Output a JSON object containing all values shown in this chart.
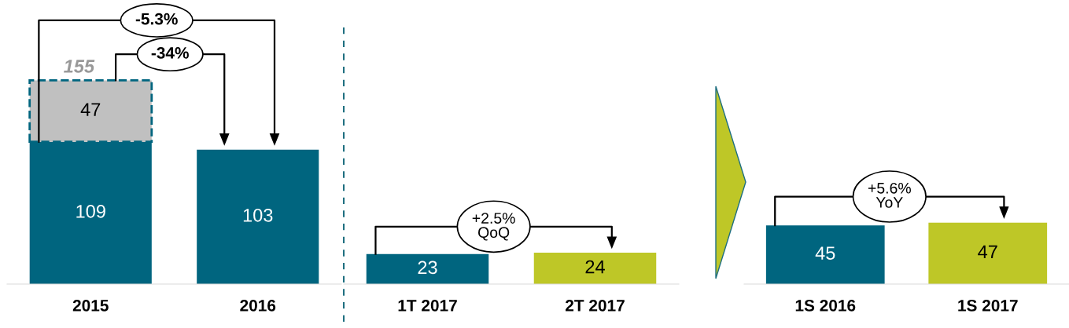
{
  "chart_data": [
    {
      "type": "bar",
      "stacked": true,
      "categories": [
        "2015",
        "2016"
      ],
      "tick_labels": "x",
      "data_labels": true,
      "totals": [
        "155",
        null
      ],
      "series": [
        {
          "colors": [
            "#00657f",
            "#00657f"
          ],
          "values": [
            109,
            103
          ]
        },
        {
          "color": "#c0c0c0",
          "values": [
            47,
            null
          ],
          "line_style": "dashed"
        }
      ],
      "annotations": [
        "-5.3%",
        "-34%"
      ]
    },
    {
      "type": "bar",
      "stacked": true,
      "categories": [
        "1T 2017",
        "2T 2017"
      ],
      "tick_labels": "x",
      "data_labels": true,
      "series": [
        {
          "colors": [
            "#00657f",
            "#bec727"
          ],
          "values": [
            23,
            24
          ]
        }
      ],
      "annotations": [
        "+2.5%\nQoQ"
      ]
    },
    {
      "type": "bar",
      "stacked": true,
      "categories": [
        "1S 2016",
        "1S 2017"
      ],
      "tick_labels": "x",
      "data_labels": true,
      "series": [
        {
          "colors": [
            "#00657f",
            "#bec727"
          ],
          "values": [
            45,
            47
          ]
        }
      ],
      "annotations": [
        "+5.6%\nYoY"
      ]
    }
  ]
}
